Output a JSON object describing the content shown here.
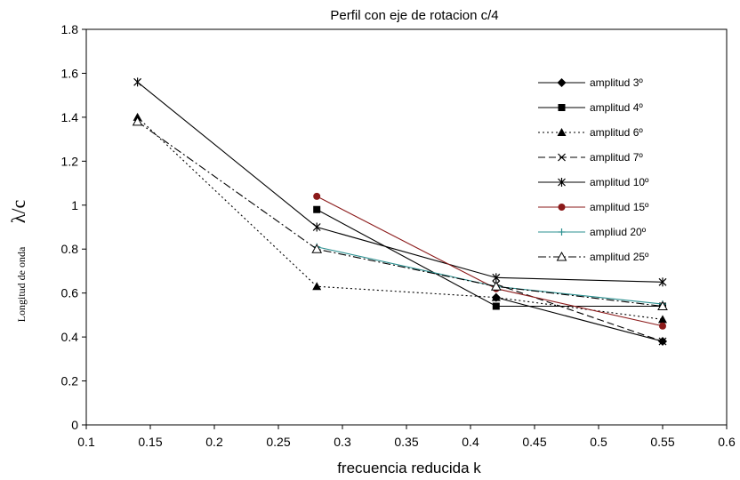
{
  "chart_data": {
    "type": "line",
    "title": "Perfil con eje de rotacion c/4",
    "xlabel": "frecuencia reducida k",
    "ylabel": "Longitud de onda",
    "ylabel_symbol": "λ/c",
    "xlim": [
      0.1,
      0.6
    ],
    "ylim": [
      0,
      1.8
    ],
    "xticks": [
      "0.1",
      "0.15",
      "0.2",
      "0.25",
      "0.3",
      "0.35",
      "0.4",
      "0.45",
      "0.5",
      "0.55",
      "0.6"
    ],
    "yticks": [
      "0",
      "0.2",
      "0.4",
      "0.6",
      "0.8",
      "1",
      "1.2",
      "1.4",
      "1.6",
      "1.8"
    ],
    "grid": false,
    "legend_position": "right",
    "series": [
      {
        "name": "amplitud 3º",
        "marker": "diamond",
        "dash": "solid",
        "color": "#000000",
        "x": [
          0.42,
          0.55
        ],
        "y": [
          0.58,
          0.38
        ]
      },
      {
        "name": "amplitud 4º",
        "marker": "square",
        "dash": "solid",
        "color": "#000000",
        "x": [
          0.28,
          0.42,
          0.55
        ],
        "y": [
          0.98,
          0.54,
          0.54
        ]
      },
      {
        "name": "amplitud 6º",
        "marker": "triangle",
        "dash": "dotted",
        "color": "#000000",
        "x": [
          0.14,
          0.28,
          0.42,
          0.55
        ],
        "y": [
          1.4,
          0.63,
          0.58,
          0.48
        ]
      },
      {
        "name": "amplitud 7º",
        "marker": "x",
        "dash": "dashed",
        "color": "#000000",
        "x": [
          0.42,
          0.55
        ],
        "y": [
          0.64,
          0.38
        ]
      },
      {
        "name": "amplitud 10º",
        "marker": "star",
        "dash": "solid",
        "color": "#000000",
        "x": [
          0.14,
          0.28,
          0.42,
          0.55
        ],
        "y": [
          1.56,
          0.9,
          0.67,
          0.65
        ]
      },
      {
        "name": "amplitud 15º",
        "marker": "circle",
        "dash": "solid",
        "color": "#8b1a1a",
        "x": [
          0.28,
          0.42,
          0.55
        ],
        "y": [
          1.04,
          0.62,
          0.45
        ]
      },
      {
        "name": "ampliud 20º",
        "marker": "plus",
        "dash": "solid",
        "color": "#2a8f8f",
        "x": [
          0.28,
          0.42,
          0.55
        ],
        "y": [
          0.81,
          0.63,
          0.55
        ]
      },
      {
        "name": "amplitud 25º",
        "marker": "open-triangle",
        "dash": "dashdot",
        "color": "#000000",
        "x": [
          0.14,
          0.28,
          0.42,
          0.55
        ],
        "y": [
          1.38,
          0.8,
          0.63,
          0.54
        ]
      }
    ]
  }
}
